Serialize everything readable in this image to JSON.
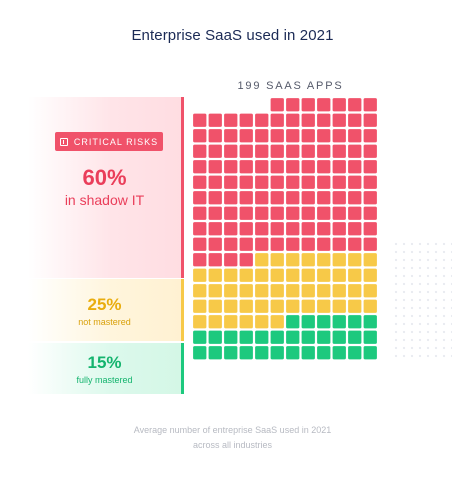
{
  "title": "Enterprise SaaS used in 2021",
  "caption_line1": "Average number of entreprise SaaS used in 2021",
  "caption_line2": "across all industries",
  "colors": {
    "red": "#f0526a",
    "yellow": "#f7c948",
    "green": "#1dc97e"
  },
  "chart_data": {
    "type": "waffle",
    "title": "Enterprise SaaS used in 2021",
    "total_label": "199 SAAS APPS",
    "total": 199,
    "segments": [
      {
        "badge": "CRITICAL RISKS",
        "badge_icon": "alert-icon",
        "value_label": "60%",
        "label": "in shadow IT",
        "percent": 60,
        "color": "#f0526a"
      },
      {
        "value_label": "25%",
        "label": "not mastered",
        "percent": 25,
        "color": "#f7c948"
      },
      {
        "value_label": "15%",
        "label": "fully mastered",
        "percent": 15,
        "color": "#1dc97e"
      }
    ]
  }
}
